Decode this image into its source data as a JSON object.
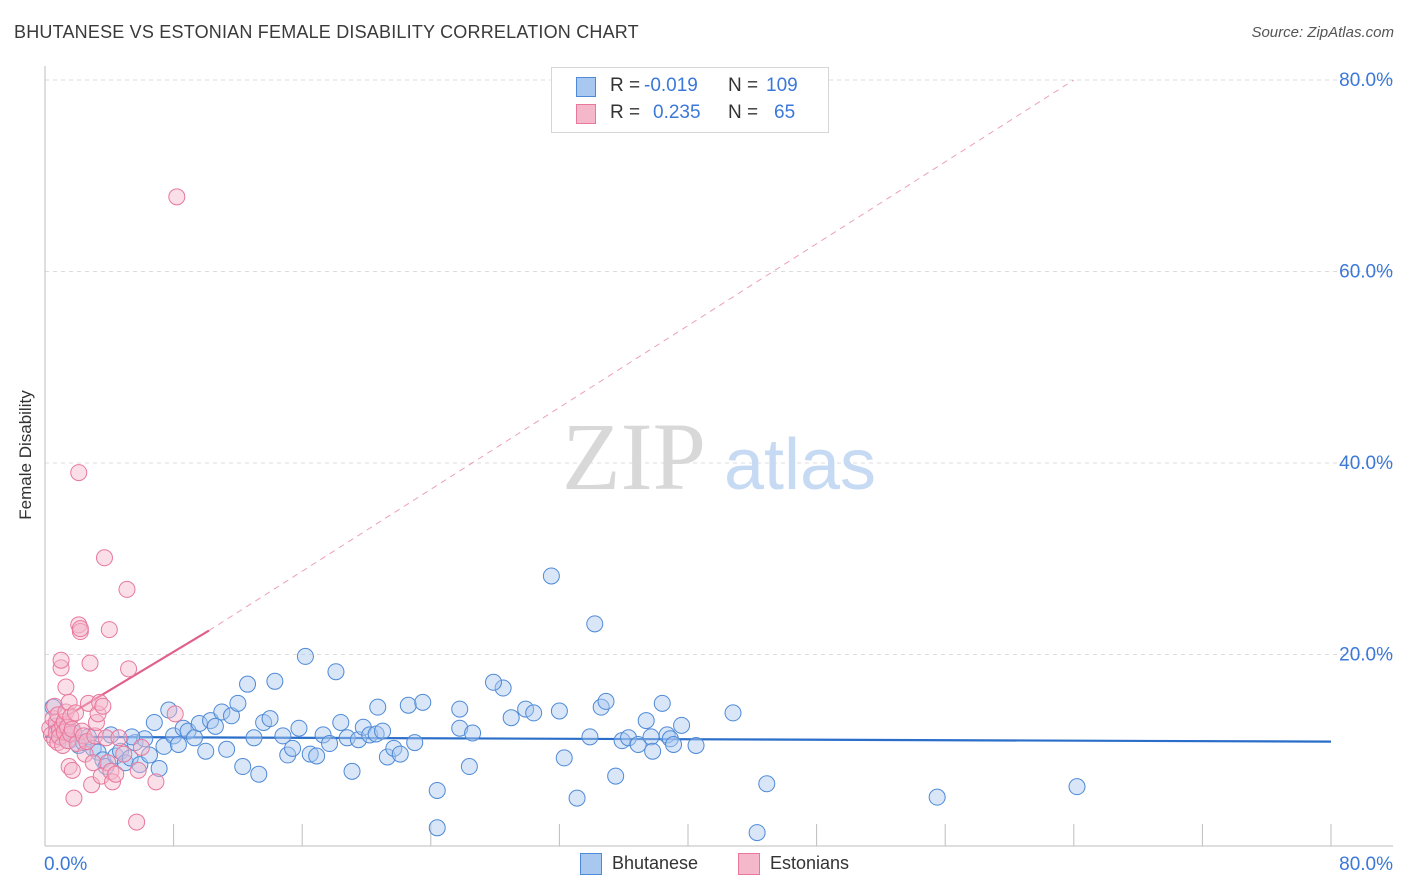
{
  "title": "BHUTANESE VS ESTONIAN FEMALE DISABILITY CORRELATION CHART",
  "source": "Source: ZipAtlas.com",
  "watermark": {
    "part1": "ZIP",
    "part2": "atlas"
  },
  "stats_legend": [
    {
      "series": "Bhutanese",
      "r_label": "R =",
      "r_value": "-0.019",
      "n_label": "N =",
      "n_value": "109"
    },
    {
      "series": "Estonians",
      "r_label": "R =",
      "r_value": "0.235",
      "n_label": "N =",
      "n_value": "65"
    }
  ],
  "colors": {
    "blue_fill": "#a8c8f0",
    "blue_stroke": "#4f8ad6",
    "blue_line": "#2a6ec9",
    "pink_fill": "#f5b8cb",
    "pink_stroke": "#e8789c",
    "pink_line": "#e0608c",
    "axis_text": "#3b78d8",
    "grid": "#dcdcdc"
  },
  "chart_data": {
    "type": "scatter",
    "title": "BHUTANESE VS ESTONIAN FEMALE DISABILITY CORRELATION CHART",
    "xlabel": "",
    "ylabel": "Female Disability",
    "xlim": [
      0,
      80
    ],
    "ylim": [
      0,
      80
    ],
    "x_tick_labels": [
      "0.0%",
      "80.0%"
    ],
    "y_tick_labels": [
      "20.0%",
      "40.0%",
      "60.0%",
      "80.0%"
    ],
    "y_ticks": [
      20,
      40,
      60,
      80
    ],
    "x_ticks": [
      0,
      8,
      16,
      24,
      32,
      40,
      48,
      56,
      64,
      72,
      80
    ],
    "legend": [
      "Bhutanese",
      "Estonians"
    ],
    "series": [
      {
        "name": "Bhutanese",
        "color": "blue",
        "points": [
          [
            0.5,
            14.5
          ],
          [
            0.7,
            12.5
          ],
          [
            0.9,
            11.5
          ],
          [
            1.2,
            12.0
          ],
          [
            1.5,
            11.0
          ],
          [
            1.8,
            11.8
          ],
          [
            2.1,
            10.5
          ],
          [
            2.4,
            10.8
          ],
          [
            2.7,
            11.4
          ],
          [
            3.0,
            10.2
          ],
          [
            3.3,
            9.8
          ],
          [
            3.6,
            9.0
          ],
          [
            3.8,
            8.3
          ],
          [
            4.1,
            11.6
          ],
          [
            4.4,
            9.4
          ],
          [
            4.7,
            9.9
          ],
          [
            5.0,
            8.7
          ],
          [
            5.3,
            9.2
          ],
          [
            5.6,
            10.8
          ],
          [
            5.9,
            8.5
          ],
          [
            6.2,
            11.2
          ],
          [
            6.5,
            9.5
          ],
          [
            6.8,
            12.9
          ],
          [
            7.1,
            8.1
          ],
          [
            7.4,
            10.4
          ],
          [
            7.7,
            14.2
          ],
          [
            8.0,
            11.5
          ],
          [
            8.3,
            10.6
          ],
          [
            8.6,
            12.3
          ],
          [
            8.9,
            12.0
          ],
          [
            9.3,
            11.3
          ],
          [
            9.6,
            12.8
          ],
          [
            10.0,
            9.9
          ],
          [
            10.3,
            13.1
          ],
          [
            10.6,
            12.5
          ],
          [
            11.0,
            14.0
          ],
          [
            11.3,
            10.1
          ],
          [
            11.6,
            13.6
          ],
          [
            12.0,
            14.9
          ],
          [
            12.3,
            8.3
          ],
          [
            12.6,
            16.9
          ],
          [
            13.0,
            11.3
          ],
          [
            13.3,
            7.5
          ],
          [
            13.6,
            12.9
          ],
          [
            14.0,
            13.3
          ],
          [
            14.3,
            17.2
          ],
          [
            14.8,
            11.5
          ],
          [
            15.1,
            9.5
          ],
          [
            15.4,
            10.2
          ],
          [
            15.8,
            12.3
          ],
          [
            16.2,
            19.8
          ],
          [
            16.5,
            9.6
          ],
          [
            16.9,
            9.4
          ],
          [
            17.3,
            11.6
          ],
          [
            17.7,
            10.7
          ],
          [
            18.1,
            18.2
          ],
          [
            18.4,
            12.9
          ],
          [
            18.8,
            11.3
          ],
          [
            19.1,
            7.8
          ],
          [
            19.5,
            11.1
          ],
          [
            19.8,
            12.4
          ],
          [
            20.2,
            11.6
          ],
          [
            20.6,
            11.7
          ],
          [
            21.0,
            12.0
          ],
          [
            21.3,
            9.3
          ],
          [
            21.7,
            10.2
          ],
          [
            22.1,
            9.6
          ],
          [
            22.6,
            14.7
          ],
          [
            23.0,
            10.8
          ],
          [
            23.5,
            15.0
          ],
          [
            24.4,
            5.8
          ],
          [
            24.4,
            1.9
          ],
          [
            25.8,
            12.3
          ],
          [
            25.8,
            14.3
          ],
          [
            26.4,
            8.3
          ],
          [
            26.6,
            11.8
          ],
          [
            28.5,
            16.5
          ],
          [
            29.0,
            13.4
          ],
          [
            29.9,
            14.3
          ],
          [
            30.4,
            13.9
          ],
          [
            31.5,
            28.2
          ],
          [
            32.0,
            14.1
          ],
          [
            32.3,
            9.2
          ],
          [
            33.1,
            5.0
          ],
          [
            33.9,
            11.4
          ],
          [
            34.2,
            23.2
          ],
          [
            34.6,
            14.5
          ],
          [
            34.9,
            15.1
          ],
          [
            35.5,
            7.3
          ],
          [
            35.9,
            11.0
          ],
          [
            36.3,
            11.3
          ],
          [
            36.9,
            10.6
          ],
          [
            37.4,
            13.1
          ],
          [
            37.7,
            11.4
          ],
          [
            37.8,
            9.9
          ],
          [
            38.4,
            14.9
          ],
          [
            38.7,
            11.6
          ],
          [
            38.9,
            11.2
          ],
          [
            39.1,
            10.6
          ],
          [
            39.6,
            12.6
          ],
          [
            40.5,
            10.5
          ],
          [
            42.8,
            13.9
          ],
          [
            44.9,
            6.5
          ],
          [
            55.5,
            5.1
          ],
          [
            64.2,
            6.2
          ],
          [
            44.3,
            1.4
          ],
          [
            27.9,
            17.1
          ],
          [
            20.7,
            14.5
          ],
          [
            5.4,
            11.4
          ]
        ],
        "trendline": {
          "x": [
            0,
            80
          ],
          "y": [
            11.4,
            10.9
          ]
        }
      },
      {
        "name": "Estonians",
        "color": "pink",
        "points": [
          [
            0.3,
            12.3
          ],
          [
            0.4,
            11.6
          ],
          [
            0.5,
            13.3
          ],
          [
            0.6,
            11.1
          ],
          [
            0.6,
            14.6
          ],
          [
            0.7,
            12.9
          ],
          [
            0.7,
            11.8
          ],
          [
            0.8,
            10.8
          ],
          [
            0.8,
            13.7
          ],
          [
            0.9,
            12.1
          ],
          [
            0.9,
            11.4
          ],
          [
            1.0,
            18.6
          ],
          [
            1.0,
            19.4
          ],
          [
            1.1,
            12.6
          ],
          [
            1.1,
            10.5
          ],
          [
            1.2,
            13.0
          ],
          [
            1.2,
            11.9
          ],
          [
            1.3,
            16.6
          ],
          [
            1.3,
            14.0
          ],
          [
            1.4,
            12.4
          ],
          [
            1.4,
            11.0
          ],
          [
            1.5,
            15.0
          ],
          [
            1.5,
            8.3
          ],
          [
            1.6,
            13.5
          ],
          [
            1.6,
            11.7
          ],
          [
            1.7,
            12.2
          ],
          [
            1.7,
            7.9
          ],
          [
            1.8,
            5.0
          ],
          [
            1.9,
            13.9
          ],
          [
            2.0,
            10.7
          ],
          [
            2.1,
            39.0
          ],
          [
            2.1,
            23.1
          ],
          [
            2.2,
            22.4
          ],
          [
            2.2,
            22.7
          ],
          [
            2.3,
            12.0
          ],
          [
            2.4,
            11.5
          ],
          [
            2.5,
            9.6
          ],
          [
            2.6,
            10.9
          ],
          [
            2.7,
            14.9
          ],
          [
            2.8,
            19.1
          ],
          [
            2.9,
            6.4
          ],
          [
            3.0,
            8.7
          ],
          [
            3.1,
            11.5
          ],
          [
            3.2,
            12.9
          ],
          [
            3.3,
            13.8
          ],
          [
            3.4,
            15.0
          ],
          [
            3.5,
            7.3
          ],
          [
            3.6,
            14.6
          ],
          [
            3.7,
            30.1
          ],
          [
            3.8,
            11.3
          ],
          [
            3.9,
            8.7
          ],
          [
            4.0,
            22.6
          ],
          [
            4.1,
            7.8
          ],
          [
            4.2,
            6.7
          ],
          [
            4.4,
            7.5
          ],
          [
            4.6,
            11.3
          ],
          [
            4.9,
            9.6
          ],
          [
            5.1,
            26.8
          ],
          [
            5.2,
            18.5
          ],
          [
            5.8,
            7.9
          ],
          [
            6.0,
            10.3
          ],
          [
            6.9,
            6.7
          ],
          [
            8.1,
            13.8
          ],
          [
            8.2,
            67.8
          ],
          [
            5.7,
            2.5
          ]
        ],
        "trendline": {
          "x": [
            0.3,
            10.2
          ],
          "y": [
            12.5,
            22.5
          ],
          "dashed_extension": {
            "x": [
              10.2,
              64.0
            ],
            "y": [
              22.5,
              80.0
            ]
          }
        }
      }
    ]
  }
}
